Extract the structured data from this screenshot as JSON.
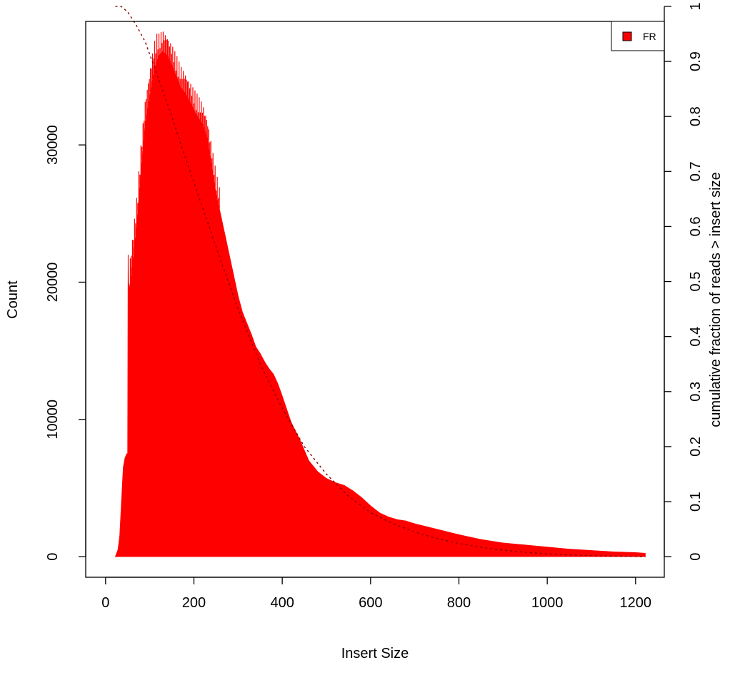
{
  "chart_data": {
    "type": "area",
    "xlabel": "Insert Size",
    "ylabel": "Count",
    "y2label": "cumulative fraction of reads > insert size",
    "xlim": [
      -45,
      1265
    ],
    "ylim": [
      -1500,
      39000
    ],
    "y2lim": [
      -0.0374,
      0.9727
    ],
    "x_ticks": [
      0,
      200,
      400,
      600,
      800,
      1000,
      1200
    ],
    "x_tick_labels": [
      "0",
      "200",
      "400",
      "600",
      "800",
      "1000",
      "1200"
    ],
    "y_ticks": [
      0,
      10000,
      20000,
      30000
    ],
    "y_tick_labels": [
      "0",
      "10000",
      "20000",
      "30000"
    ],
    "y2_ticks": [
      0,
      0.1,
      0.2,
      0.3,
      0.4,
      0.5,
      0.6,
      0.7,
      0.8,
      0.9,
      1
    ],
    "y2_tick_labels": [
      "0",
      "0.1",
      "0.2",
      "0.3",
      "0.4",
      "0.5",
      "0.6",
      "0.7",
      "0.8",
      "0.9",
      "1"
    ],
    "legend": {
      "position": "top-right",
      "entries": [
        {
          "label": "FR",
          "color": "#ff0000"
        }
      ]
    },
    "series": [
      {
        "name": "FR",
        "kind": "histogram",
        "color": "#ff0000",
        "x": [
          22,
          28,
          32,
          36,
          40,
          44,
          48,
          50,
          51,
          52,
          54,
          60,
          70,
          80,
          90,
          100,
          110,
          120,
          130,
          140,
          150,
          160,
          170,
          180,
          190,
          200,
          210,
          220,
          230,
          240,
          250,
          260,
          270,
          280,
          290,
          300,
          310,
          320,
          330,
          340,
          350,
          360,
          370,
          380,
          390,
          400,
          420,
          440,
          460,
          480,
          500,
          520,
          540,
          560,
          580,
          600,
          620,
          640,
          660,
          680,
          700,
          750,
          800,
          850,
          900,
          950,
          1000,
          1050,
          1100,
          1150,
          1200,
          1222
        ],
        "y": [
          0,
          500,
          1500,
          4000,
          6500,
          7200,
          7500,
          7500,
          22000,
          20000,
          19500,
          21000,
          24000,
          28000,
          31500,
          33500,
          35500,
          36500,
          36800,
          36500,
          35800,
          35000,
          34200,
          33800,
          33200,
          32500,
          32000,
          31500,
          30500,
          28500,
          26500,
          25000,
          23500,
          22000,
          20500,
          19000,
          17800,
          17000,
          16200,
          15300,
          14800,
          14200,
          13700,
          13300,
          12600,
          11700,
          9800,
          8500,
          7000,
          6200,
          5700,
          5400,
          5200,
          4800,
          4300,
          3700,
          3200,
          2900,
          2700,
          2600,
          2400,
          2000,
          1600,
          1250,
          1000,
          850,
          700,
          550,
          450,
          350,
          300,
          250
        ],
        "spiky_below_x": 260
      },
      {
        "name": "",
        "kind": "cumulative",
        "axis": "right",
        "color": "#8b0000",
        "line_style": "dashed",
        "x": [
          22,
          35,
          50,
          70,
          90,
          110,
          130,
          150,
          170,
          200,
          230,
          260,
          300,
          350,
          400,
          450,
          500,
          550,
          600,
          650,
          700,
          750,
          800,
          850,
          900,
          950,
          1000,
          1050,
          1100,
          1150,
          1222
        ],
        "y": [
          1.0,
          1.0,
          0.99,
          0.965,
          0.935,
          0.89,
          0.845,
          0.8,
          0.75,
          0.68,
          0.61,
          0.54,
          0.45,
          0.35,
          0.27,
          0.2,
          0.15,
          0.11,
          0.08,
          0.06,
          0.045,
          0.033,
          0.024,
          0.017,
          0.012,
          0.008,
          0.005,
          0.003,
          0.002,
          0.001,
          0.0
        ]
      }
    ]
  }
}
